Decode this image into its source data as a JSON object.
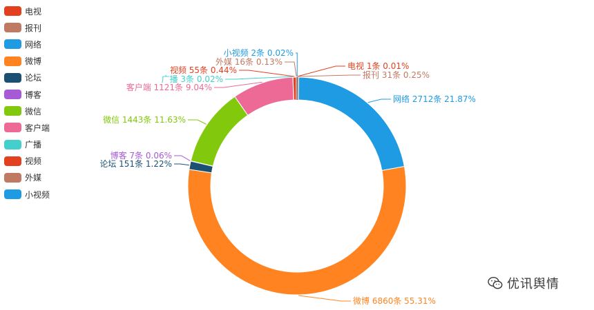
{
  "chart_data": {
    "type": "pie",
    "style": "donut",
    "title": "",
    "legend_position": "top-left",
    "unit": "条",
    "series": [
      {
        "name": "电视",
        "value": 1,
        "percent": "0.01%",
        "color": "#e3401f"
      },
      {
        "name": "报刊",
        "value": 31,
        "percent": "0.25%",
        "color": "#c07a63"
      },
      {
        "name": "网络",
        "value": 2712,
        "percent": "21.87%",
        "color": "#1f9be3"
      },
      {
        "name": "微博",
        "value": 6860,
        "percent": "55.31%",
        "color": "#ff8421"
      },
      {
        "name": "论坛",
        "value": 151,
        "percent": "1.22%",
        "color": "#1b5073"
      },
      {
        "name": "博客",
        "value": 7,
        "percent": "0.06%",
        "color": "#a65ad6"
      },
      {
        "name": "微信",
        "value": 1443,
        "percent": "11.63%",
        "color": "#82c80c"
      },
      {
        "name": "客户端",
        "value": 1121,
        "percent": "9.04%",
        "color": "#ec6a95"
      },
      {
        "name": "广播",
        "value": 3,
        "percent": "0.02%",
        "color": "#43d0cc"
      },
      {
        "name": "视频",
        "value": 55,
        "percent": "0.44%",
        "color": "#e3401f"
      },
      {
        "name": "外媒",
        "value": 16,
        "percent": "0.13%",
        "color": "#c07a63"
      },
      {
        "name": "小视频",
        "value": 2,
        "percent": "0.02%",
        "color": "#1f9be3"
      }
    ]
  },
  "watermark": {
    "text": "优讯舆情",
    "icon": "wechat-icon"
  }
}
